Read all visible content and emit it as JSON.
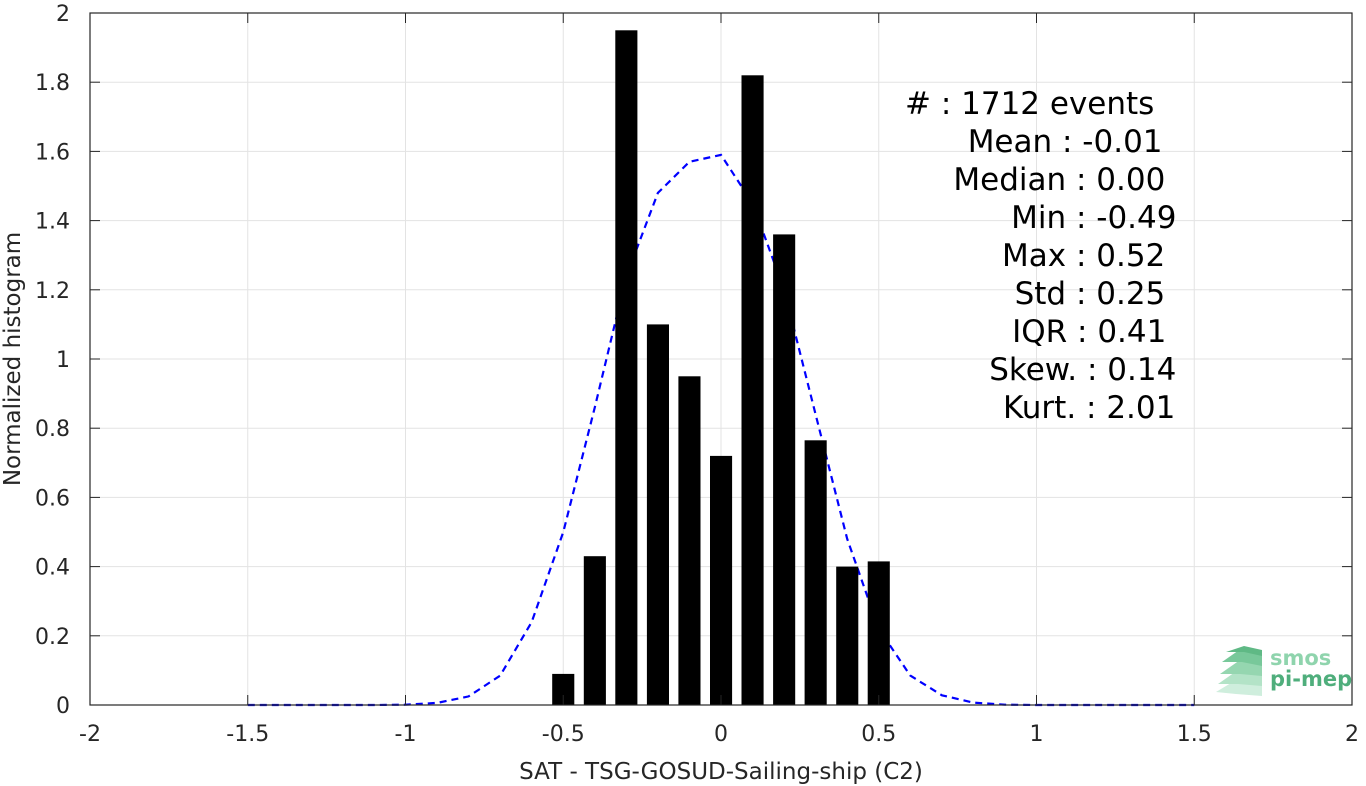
{
  "chart_data": {
    "type": "bar",
    "title": "",
    "xlabel": "SAT - TSG-GOSUD-Sailing-ship (C2)",
    "ylabel": "Normalized histogram",
    "xlim": [
      -2,
      2
    ],
    "ylim": [
      0,
      2
    ],
    "xticks": [
      -2,
      -1.5,
      -1,
      -0.5,
      0,
      0.5,
      1,
      1.5,
      2
    ],
    "yticks": [
      0,
      0.2,
      0.4,
      0.6,
      0.8,
      1,
      1.2,
      1.4,
      1.6,
      1.8,
      2
    ],
    "xtick_labels": [
      "-2",
      "-1.5",
      "-1",
      "-0.5",
      "0",
      "0.5",
      "1",
      "1.5",
      "2"
    ],
    "ytick_labels": [
      "0",
      "0.2",
      "0.4",
      "0.6",
      "0.8",
      "1",
      "1.2",
      "1.4",
      "1.6",
      "1.8",
      "2"
    ],
    "grid": true,
    "bar_color": "#000000",
    "fit_color": "#0000ff",
    "bars": {
      "centers": [
        -0.5,
        -0.4,
        -0.3,
        -0.2,
        -0.1,
        0.0,
        0.1,
        0.2,
        0.3,
        0.4,
        0.5
      ],
      "values": [
        0.09,
        0.43,
        1.95,
        1.1,
        0.95,
        0.72,
        1.82,
        1.36,
        0.765,
        0.4,
        0.415
      ],
      "width": 0.07
    },
    "fit_curve": {
      "style": "dashed",
      "x": [
        -1.5,
        -1.4,
        -1.3,
        -1.2,
        -1.1,
        -1.0,
        -0.9,
        -0.8,
        -0.7,
        -0.6,
        -0.5,
        -0.4,
        -0.3,
        -0.2,
        -0.1,
        0.0,
        0.1,
        0.2,
        0.3,
        0.4,
        0.5,
        0.6,
        0.7,
        0.8,
        0.9,
        1.0,
        1.1,
        1.2,
        1.3,
        1.4,
        1.5
      ],
      "y": [
        0,
        0,
        0,
        0,
        0,
        0.001,
        0.006,
        0.025,
        0.085,
        0.24,
        0.5,
        0.86,
        1.24,
        1.48,
        1.57,
        1.59,
        1.45,
        1.2,
        0.84,
        0.48,
        0.22,
        0.085,
        0.028,
        0.007,
        0.001,
        0,
        0,
        0,
        0,
        0,
        0
      ]
    },
    "stats_lines": [
      "#  : 1712 events",
      "Mean : -0.01",
      "Median : 0.00",
      "Min : -0.49",
      "Max : 0.52",
      "Std : 0.25",
      "IQR : 0.41",
      "Skew. : 0.14",
      "Kurt. : 2.01"
    ],
    "stats_placement": "top-right"
  },
  "logo": {
    "line1": "smos",
    "line2": "pi-mep",
    "color_light": "#8fd4ad",
    "color_dark": "#4fae7c"
  }
}
